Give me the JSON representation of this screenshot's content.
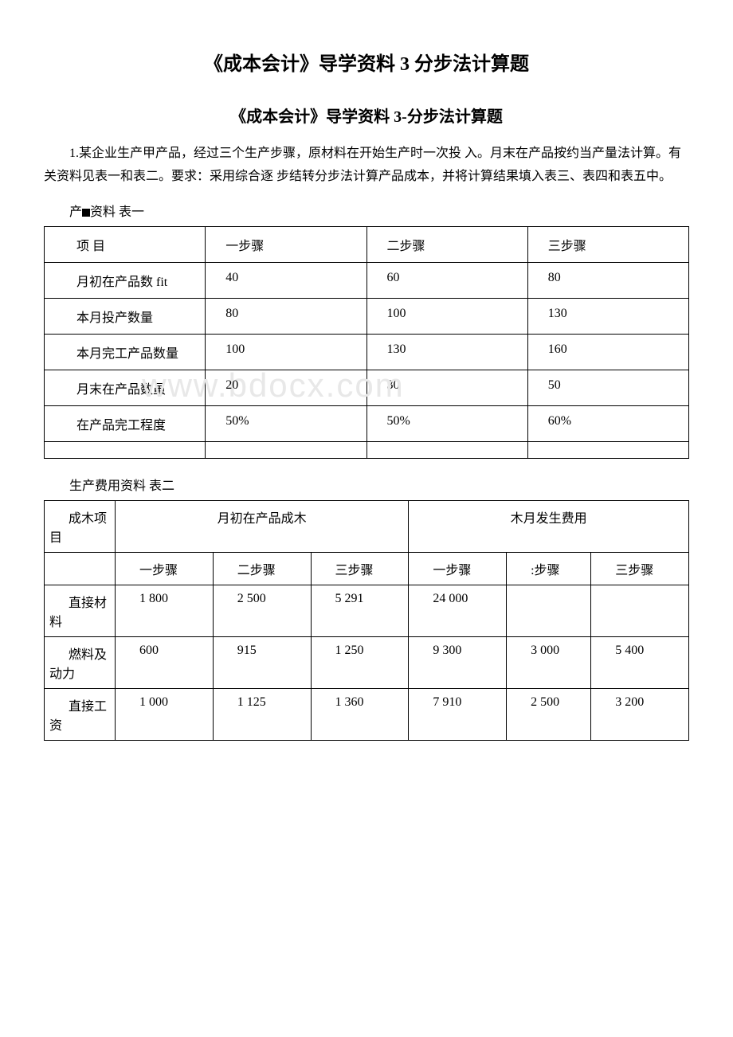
{
  "main_title": "《成本会计》导学资料 3 分步法计算题",
  "sub_title": "《成本会计》导学资料 3-分步法计算题",
  "problem_text": "1.某企业生产甲产品，经过三个生产步骤，原材料在开始生产时一次投 入。月末在产品按约当产量法计算。有关资料见表一和表二。要求：采用综合逐 步结转分步法计算产品成本，并将计算结果填入表三、表四和表五中。",
  "table1_caption_prefix": "产",
  "table1_caption_suffix": "资料 表一",
  "table1": {
    "headers": [
      "项 目",
      "一步骤",
      "二步骤",
      "三步骤"
    ],
    "rows": [
      {
        "label": "月初在产品数 fit",
        "c1": "40",
        "c2": "60",
        "c3": "80"
      },
      {
        "label": "本月投产数量",
        "c1": "80",
        "c2": "100",
        "c3": "130"
      },
      {
        "label": "本月完工产品数量",
        "c1": "100",
        "c2": "130",
        "c3": "160"
      },
      {
        "label": "月末在产品数虽",
        "c1": "20",
        "c2": "30",
        "c3": "50"
      },
      {
        "label": "在产品完工程度",
        "c1": "50%",
        "c2": "50%",
        "c3": "60%"
      }
    ],
    "column_widths": [
      "25%",
      "25%",
      "25%",
      "25%"
    ],
    "border_color": "#000000",
    "font_size": 16
  },
  "table2_caption": "生产费用资料 表二",
  "table2": {
    "group_headers": [
      "成木项目",
      "月初在产品成木",
      "木月发生费用"
    ],
    "sub_headers": [
      "",
      "一步骤",
      "二步骤",
      "三步骤",
      "一步骤",
      ":步骤",
      "三步骤"
    ],
    "rows": [
      {
        "label": "直接材料",
        "c1": "1 800",
        "c2": "2 500",
        "c3": "5 291",
        "c4": "24 000",
        "c5": "",
        "c6": ""
      },
      {
        "label": "燃料及动力",
        "c1": "600",
        "c2": "915",
        "c3": "1 250",
        "c4": "9 300",
        "c5": "3 000",
        "c6": "5 400"
      },
      {
        "label": "直接工资",
        "c1": "1 000",
        "c2": "1 125",
        "c3": "1 360",
        "c4": "7 910",
        "c5": "2 500",
        "c6": "3 200"
      }
    ],
    "border_color": "#000000",
    "font_size": 16
  },
  "watermark_text": "www.bdocx.com",
  "colors": {
    "text": "#000000",
    "background": "#ffffff",
    "watermark": "#e8e8e8"
  }
}
